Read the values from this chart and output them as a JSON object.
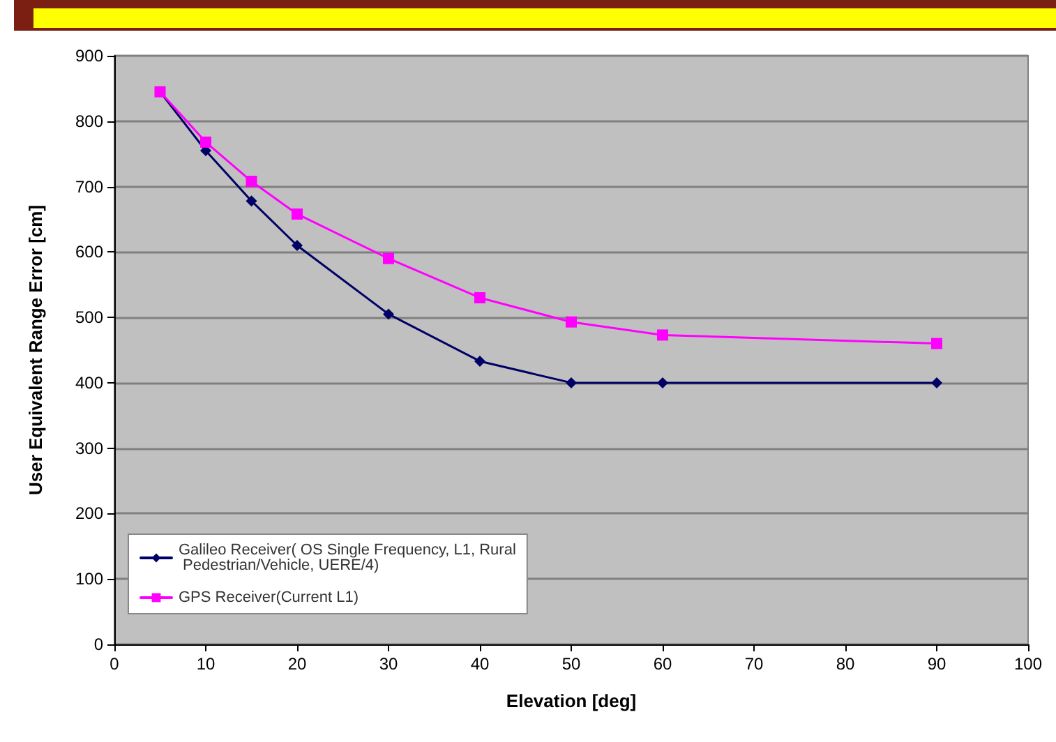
{
  "chart_data": {
    "type": "line",
    "xlabel": "Elevation [deg]",
    "ylabel": "User Equivalent Range Error [cm]",
    "x": [
      5,
      10,
      15,
      20,
      30,
      40,
      50,
      60,
      90
    ],
    "series": [
      {
        "name": "Galileo Receiver( OS Single Frequency, L1, Rural Pedestrian/Vehicle, UERE/4)",
        "color": "#000066",
        "marker": "diamond",
        "values": [
          845,
          755,
          678,
          610,
          505,
          433,
          400,
          400,
          400
        ]
      },
      {
        "name": "GPS Receiver(Current L1)",
        "color": "#ff00ff",
        "marker": "square",
        "values": [
          845,
          768,
          708,
          658,
          590,
          530,
          493,
          473,
          460
        ]
      }
    ],
    "xlim": [
      0,
      100
    ],
    "xticks": [
      0,
      10,
      20,
      30,
      40,
      50,
      60,
      70,
      80,
      90,
      100
    ],
    "ylim": [
      0,
      900
    ],
    "yticks": [
      0,
      100,
      200,
      300,
      400,
      500,
      600,
      700,
      800,
      900
    ],
    "grid": "y",
    "legend": "bottom left",
    "line_style": "solid"
  }
}
